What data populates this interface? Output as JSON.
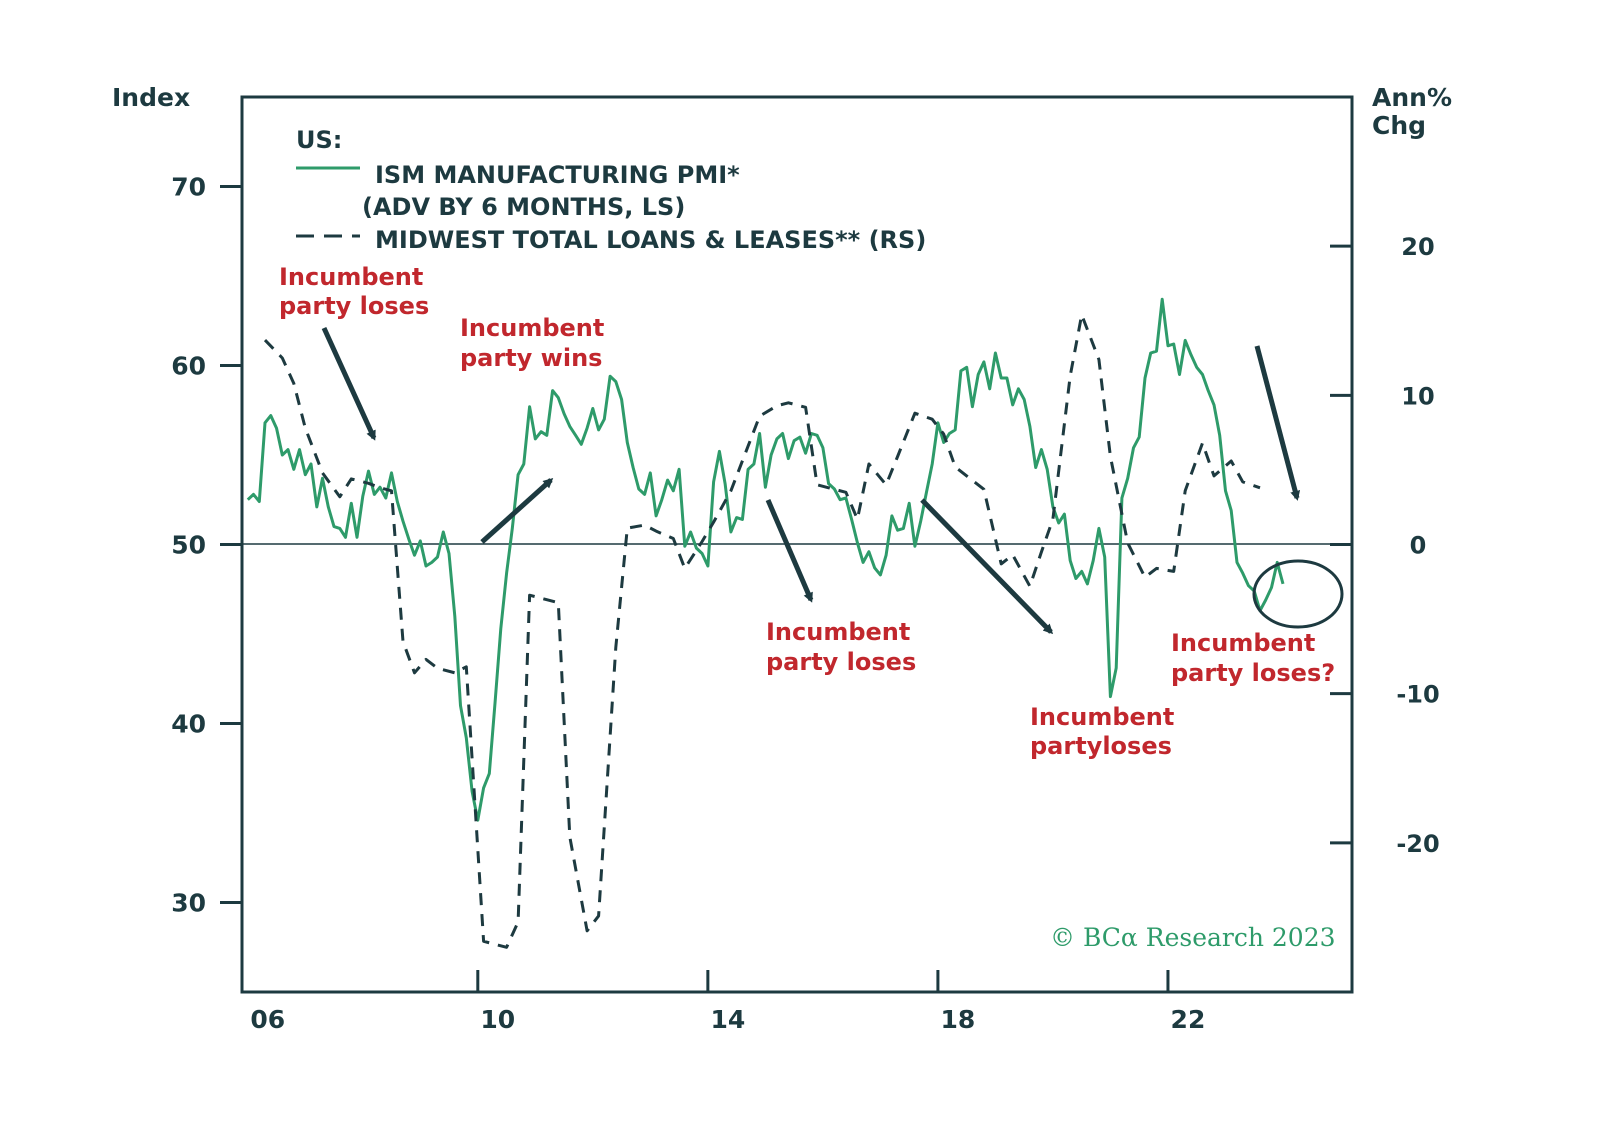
{
  "colors": {
    "pmi": "#2e9b6a",
    "loans": "#1d3a40",
    "axis": "#1d3a40",
    "annotation": "#c1272d",
    "arrow": "#1d3a40"
  },
  "chart_data": {
    "type": "line",
    "title": "US:",
    "left_axis": {
      "label": "Index",
      "range": [
        25,
        75
      ],
      "ticks": [
        30,
        40,
        50,
        60,
        70
      ]
    },
    "right_axis": {
      "label_line1": "Ann%",
      "label_line2": "Chg",
      "range": [
        -30,
        30
      ],
      "ticks": [
        20,
        10,
        0,
        -10,
        -20
      ]
    },
    "x_axis": {
      "range": [
        2005.9,
        2025.2
      ],
      "ticks": [
        2006,
        2010,
        2014,
        2018,
        2022
      ],
      "tick_labels": [
        "06",
        "10",
        "14",
        "18",
        "22"
      ]
    },
    "legend": [
      {
        "line1": "ISM MANUFACTURING PMI*",
        "line2": "(ADV BY 6 MONTHS, LS)"
      },
      {
        "line1": "MIDWEST TOTAL LOANS & LEASES** (RS)"
      }
    ],
    "series": [
      {
        "name": "ISM MANUFACTURING PMI* (ADV BY 6 MONTHS, LS)",
        "axis": "left",
        "style": "solid",
        "points": [
          [
            2006.0,
            52.5
          ],
          [
            2006.1,
            52.8
          ],
          [
            2006.2,
            52.4
          ],
          [
            2006.3,
            56.8
          ],
          [
            2006.4,
            57.2
          ],
          [
            2006.5,
            56.5
          ],
          [
            2006.6,
            55.0
          ],
          [
            2006.7,
            55.3
          ],
          [
            2006.8,
            54.2
          ],
          [
            2006.9,
            55.3
          ],
          [
            2007.0,
            53.9
          ],
          [
            2007.1,
            54.5
          ],
          [
            2007.2,
            52.1
          ],
          [
            2007.3,
            53.7
          ],
          [
            2007.4,
            52.1
          ],
          [
            2007.5,
            51.0
          ],
          [
            2007.6,
            50.9
          ],
          [
            2007.7,
            50.4
          ],
          [
            2007.8,
            52.3
          ],
          [
            2007.9,
            50.4
          ],
          [
            2008.0,
            52.7
          ],
          [
            2008.1,
            54.1
          ],
          [
            2008.2,
            52.8
          ],
          [
            2008.3,
            53.2
          ],
          [
            2008.4,
            52.6
          ],
          [
            2008.5,
            54.0
          ],
          [
            2008.6,
            52.4
          ],
          [
            2008.7,
            51.3
          ],
          [
            2008.8,
            50.3
          ],
          [
            2008.9,
            49.4
          ],
          [
            2009.0,
            50.2
          ],
          [
            2009.1,
            48.8
          ],
          [
            2009.2,
            49.0
          ],
          [
            2009.3,
            49.3
          ],
          [
            2009.4,
            50.7
          ],
          [
            2009.5,
            49.5
          ],
          [
            2009.6,
            46.0
          ],
          [
            2009.7,
            41.0
          ],
          [
            2009.8,
            39.2
          ],
          [
            2009.9,
            36.2
          ],
          [
            2010.0,
            34.6
          ],
          [
            2010.1,
            36.4
          ],
          [
            2010.2,
            37.2
          ],
          [
            2010.3,
            41.2
          ],
          [
            2010.4,
            45.3
          ],
          [
            2010.5,
            48.4
          ],
          [
            2010.6,
            50.9
          ],
          [
            2010.7,
            53.9
          ],
          [
            2010.8,
            54.5
          ],
          [
            2010.9,
            57.7
          ],
          [
            2011.0,
            55.9
          ],
          [
            2011.1,
            56.3
          ],
          [
            2011.2,
            56.1
          ],
          [
            2011.3,
            58.6
          ],
          [
            2011.4,
            58.2
          ],
          [
            2011.5,
            57.3
          ],
          [
            2011.6,
            56.6
          ],
          [
            2011.7,
            56.1
          ],
          [
            2011.8,
            55.6
          ],
          [
            2011.9,
            56.5
          ],
          [
            2012.0,
            57.6
          ],
          [
            2012.1,
            56.4
          ],
          [
            2012.2,
            57.0
          ],
          [
            2012.3,
            59.4
          ],
          [
            2012.4,
            59.1
          ],
          [
            2012.5,
            58.1
          ],
          [
            2012.6,
            55.7
          ],
          [
            2012.7,
            54.3
          ],
          [
            2012.8,
            53.1
          ],
          [
            2012.9,
            52.8
          ],
          [
            2013.0,
            54.0
          ],
          [
            2013.1,
            51.6
          ],
          [
            2013.2,
            52.5
          ],
          [
            2013.3,
            53.6
          ],
          [
            2013.4,
            53.0
          ],
          [
            2013.5,
            54.2
          ],
          [
            2013.6,
            49.9
          ],
          [
            2013.7,
            50.7
          ],
          [
            2013.8,
            49.8
          ],
          [
            2013.9,
            49.5
          ],
          [
            2014.0,
            48.8
          ],
          [
            2014.1,
            53.5
          ],
          [
            2014.2,
            55.2
          ],
          [
            2014.3,
            53.4
          ],
          [
            2014.4,
            50.7
          ],
          [
            2014.5,
            51.5
          ],
          [
            2014.6,
            51.4
          ],
          [
            2014.7,
            54.2
          ],
          [
            2014.8,
            54.5
          ],
          [
            2014.9,
            56.2
          ],
          [
            2015.0,
            53.2
          ],
          [
            2015.1,
            55.0
          ],
          [
            2015.2,
            55.9
          ],
          [
            2015.3,
            56.2
          ],
          [
            2015.4,
            54.8
          ],
          [
            2015.5,
            55.8
          ],
          [
            2015.6,
            56.0
          ],
          [
            2015.7,
            55.1
          ],
          [
            2015.8,
            56.2
          ],
          [
            2015.9,
            56.1
          ],
          [
            2016.0,
            55.4
          ],
          [
            2016.1,
            53.4
          ],
          [
            2016.2,
            53.1
          ],
          [
            2016.3,
            52.5
          ],
          [
            2016.4,
            52.6
          ],
          [
            2016.5,
            51.4
          ],
          [
            2016.6,
            50.1
          ],
          [
            2016.7,
            49.0
          ],
          [
            2016.8,
            49.6
          ],
          [
            2016.9,
            48.7
          ],
          [
            2017.0,
            48.3
          ],
          [
            2017.1,
            49.4
          ],
          [
            2017.2,
            51.6
          ],
          [
            2017.3,
            50.8
          ],
          [
            2017.4,
            50.9
          ],
          [
            2017.5,
            52.3
          ],
          [
            2017.6,
            49.9
          ],
          [
            2017.7,
            51.3
          ],
          [
            2017.8,
            52.9
          ],
          [
            2017.9,
            54.5
          ],
          [
            2018.0,
            56.8
          ],
          [
            2018.1,
            55.7
          ],
          [
            2018.2,
            56.2
          ],
          [
            2018.3,
            56.4
          ],
          [
            2018.4,
            59.7
          ],
          [
            2018.5,
            59.9
          ],
          [
            2018.6,
            57.7
          ],
          [
            2018.7,
            59.5
          ],
          [
            2018.8,
            60.2
          ],
          [
            2018.9,
            58.7
          ],
          [
            2019.0,
            60.7
          ],
          [
            2019.1,
            59.3
          ],
          [
            2019.2,
            59.3
          ],
          [
            2019.3,
            57.8
          ],
          [
            2019.4,
            58.7
          ],
          [
            2019.5,
            58.1
          ],
          [
            2019.6,
            56.6
          ],
          [
            2019.7,
            54.3
          ],
          [
            2019.8,
            55.3
          ],
          [
            2019.9,
            54.2
          ],
          [
            2020.0,
            52.1
          ],
          [
            2020.1,
            51.2
          ],
          [
            2020.2,
            51.7
          ],
          [
            2020.3,
            49.1
          ],
          [
            2020.4,
            48.1
          ],
          [
            2020.5,
            48.5
          ],
          [
            2020.6,
            47.8
          ],
          [
            2020.7,
            49.1
          ],
          [
            2020.8,
            50.9
          ],
          [
            2020.9,
            49.3
          ],
          [
            2021.0,
            41.5
          ],
          [
            2021.1,
            43.1
          ],
          [
            2021.2,
            52.6
          ],
          [
            2021.3,
            53.7
          ],
          [
            2021.4,
            55.4
          ],
          [
            2021.5,
            56.0
          ],
          [
            2021.6,
            59.3
          ],
          [
            2021.7,
            60.7
          ],
          [
            2021.8,
            60.8
          ],
          [
            2021.9,
            63.7
          ],
          [
            2022.0,
            61.1
          ],
          [
            2022.1,
            61.2
          ],
          [
            2022.2,
            59.5
          ],
          [
            2022.3,
            61.4
          ],
          [
            2022.4,
            60.6
          ],
          [
            2022.5,
            59.9
          ],
          [
            2022.6,
            59.5
          ],
          [
            2022.7,
            58.6
          ],
          [
            2022.8,
            57.8
          ],
          [
            2022.9,
            56.1
          ],
          [
            2023.0,
            53.0
          ],
          [
            2023.1,
            51.9
          ],
          [
            2023.2,
            49.0
          ],
          [
            2023.3,
            48.4
          ],
          [
            2023.4,
            47.7
          ],
          [
            2023.5,
            47.4
          ],
          [
            2023.6,
            46.3
          ],
          [
            2023.7,
            46.9
          ],
          [
            2023.8,
            47.6
          ],
          [
            2023.9,
            49.0
          ],
          [
            2024.0,
            47.8
          ]
        ]
      },
      {
        "name": "MIDWEST TOTAL LOANS & LEASES** (RS)",
        "axis": "right",
        "style": "dashed",
        "points": [
          [
            2006.3,
            13.7
          ],
          [
            2006.6,
            12.5
          ],
          [
            2006.8,
            10.8
          ],
          [
            2007.0,
            7.8
          ],
          [
            2007.3,
            4.8
          ],
          [
            2007.6,
            3.2
          ],
          [
            2007.8,
            4.4
          ],
          [
            2008.1,
            4.1
          ],
          [
            2008.3,
            3.8
          ],
          [
            2008.5,
            3.6
          ],
          [
            2008.7,
            -6.5
          ],
          [
            2008.9,
            -8.6
          ],
          [
            2009.1,
            -7.7
          ],
          [
            2009.3,
            -8.3
          ],
          [
            2009.6,
            -8.6
          ],
          [
            2009.8,
            -8.2
          ],
          [
            2010.1,
            -26.6
          ],
          [
            2010.3,
            -26.8
          ],
          [
            2010.5,
            -27.0
          ],
          [
            2010.7,
            -25.3
          ],
          [
            2010.9,
            -3.4
          ],
          [
            2011.2,
            -3.7
          ],
          [
            2011.4,
            -3.9
          ],
          [
            2011.6,
            -19.6
          ],
          [
            2011.9,
            -25.9
          ],
          [
            2012.1,
            -24.9
          ],
          [
            2012.4,
            -6.9
          ],
          [
            2012.6,
            1.1
          ],
          [
            2012.9,
            1.3
          ],
          [
            2013.1,
            0.9
          ],
          [
            2013.4,
            0.4
          ],
          [
            2013.6,
            -1.6
          ],
          [
            2013.9,
            0.2
          ],
          [
            2014.1,
            1.5
          ],
          [
            2014.4,
            3.6
          ],
          [
            2014.7,
            6.6
          ],
          [
            2014.9,
            8.6
          ],
          [
            2015.2,
            9.3
          ],
          [
            2015.4,
            9.5
          ],
          [
            2015.7,
            9.2
          ],
          [
            2015.9,
            4.0
          ],
          [
            2016.1,
            3.8
          ],
          [
            2016.4,
            3.5
          ],
          [
            2016.6,
            1.7
          ],
          [
            2016.8,
            5.4
          ],
          [
            2017.1,
            4.0
          ],
          [
            2017.3,
            5.9
          ],
          [
            2017.6,
            8.8
          ],
          [
            2017.9,
            8.4
          ],
          [
            2018.1,
            7.4
          ],
          [
            2018.3,
            5.2
          ],
          [
            2018.6,
            4.3
          ],
          [
            2018.8,
            3.7
          ],
          [
            2019.1,
            -1.3
          ],
          [
            2019.3,
            -0.7
          ],
          [
            2019.6,
            -2.8
          ],
          [
            2019.8,
            -0.5
          ],
          [
            2020.0,
            1.7
          ],
          [
            2020.3,
            11.3
          ],
          [
            2020.5,
            15.4
          ],
          [
            2020.8,
            12.4
          ],
          [
            2021.0,
            5.9
          ],
          [
            2021.3,
            0.1
          ],
          [
            2021.6,
            -2.2
          ],
          [
            2021.8,
            -1.6
          ],
          [
            2022.1,
            -1.8
          ],
          [
            2022.3,
            3.6
          ],
          [
            2022.6,
            6.8
          ],
          [
            2022.8,
            4.6
          ],
          [
            2023.1,
            5.6
          ],
          [
            2023.3,
            4.2
          ],
          [
            2023.6,
            3.8
          ]
        ]
      }
    ],
    "annotations": [
      {
        "line1": "Incumbent",
        "line2": "party loses"
      },
      {
        "line1": "Incumbent",
        "line2": "party wins"
      },
      {
        "line1": "Incumbent",
        "line2": "party loses"
      },
      {
        "line1": "Incumbent",
        "line2": "partyloses"
      },
      {
        "line1": "Incumbent",
        "line2": "party loses?"
      }
    ],
    "credit": "© BCα Research 2023"
  }
}
